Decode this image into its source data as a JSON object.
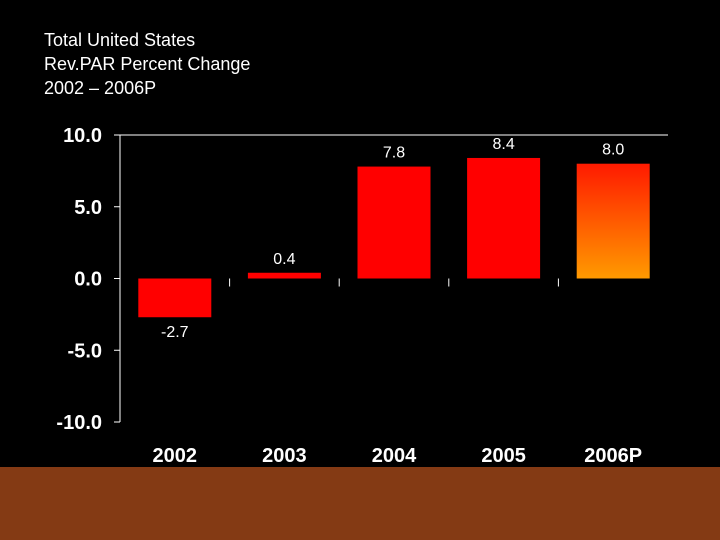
{
  "title": {
    "line1": "Total United States",
    "line2": "Rev.PAR Percent Change",
    "line3": "2002 – 2006P"
  },
  "colors": {
    "background": "#000000",
    "bar": "#ff0000",
    "bar_projected_top": "#ff1a00",
    "bar_projected_bottom": "#ff9a00",
    "axis": "#ffffff",
    "text": "#ffffff",
    "footer": "#843a14"
  },
  "chart_data": {
    "type": "bar",
    "title": "Total United States Rev.PAR Percent Change 2002 – 2006P",
    "xlabel": "",
    "ylabel": "",
    "categories": [
      "2002",
      "2003",
      "2004",
      "2005",
      "2006P"
    ],
    "values": [
      -2.7,
      0.4,
      7.8,
      8.4,
      8.0
    ],
    "data_labels": [
      "-2.7",
      "0.4",
      "7.8",
      "8.4",
      "8.0"
    ],
    "projected": [
      false,
      false,
      false,
      false,
      true
    ],
    "ylim": [
      -10.0,
      10.0
    ],
    "yticks": [
      10.0,
      5.0,
      0.0,
      -5.0,
      -10.0
    ],
    "ytick_labels": [
      "10.0",
      "5.0",
      "0.0",
      "-5.0",
      "-10.0"
    ],
    "grid": false,
    "legend": "none"
  }
}
